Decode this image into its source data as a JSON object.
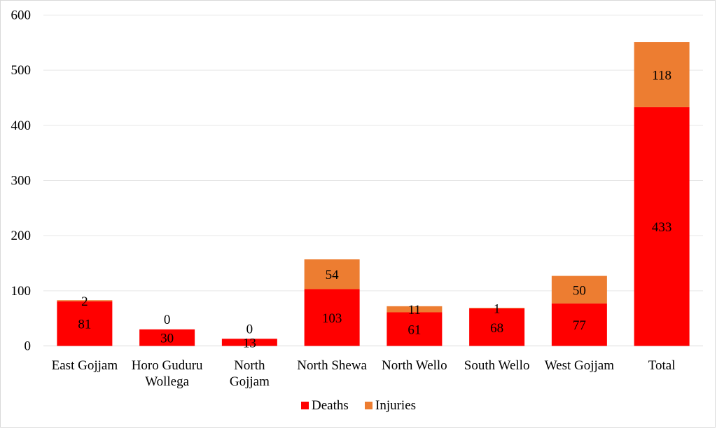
{
  "chart_data": {
    "type": "bar",
    "stacked": true,
    "categories": [
      [
        "East Gojjam"
      ],
      [
        "Horo Guduru",
        "Wollega"
      ],
      [
        "North",
        "Gojjam"
      ],
      [
        "North Shewa"
      ],
      [
        "North Wello"
      ],
      [
        "South Wello"
      ],
      [
        "West Gojjam"
      ],
      [
        "Total"
      ]
    ],
    "series": [
      {
        "name": "Deaths",
        "color": "#ff0000",
        "values": [
          81,
          30,
          13,
          103,
          61,
          68,
          77,
          433
        ]
      },
      {
        "name": "Injuries",
        "color": "#ed7d31",
        "values": [
          2,
          0,
          0,
          54,
          11,
          1,
          50,
          118
        ]
      }
    ],
    "ylim": [
      0,
      600
    ],
    "yticks": [
      0,
      100,
      200,
      300,
      400,
      500,
      600
    ],
    "grid": true,
    "legend": "bottom",
    "data_labels": true
  }
}
